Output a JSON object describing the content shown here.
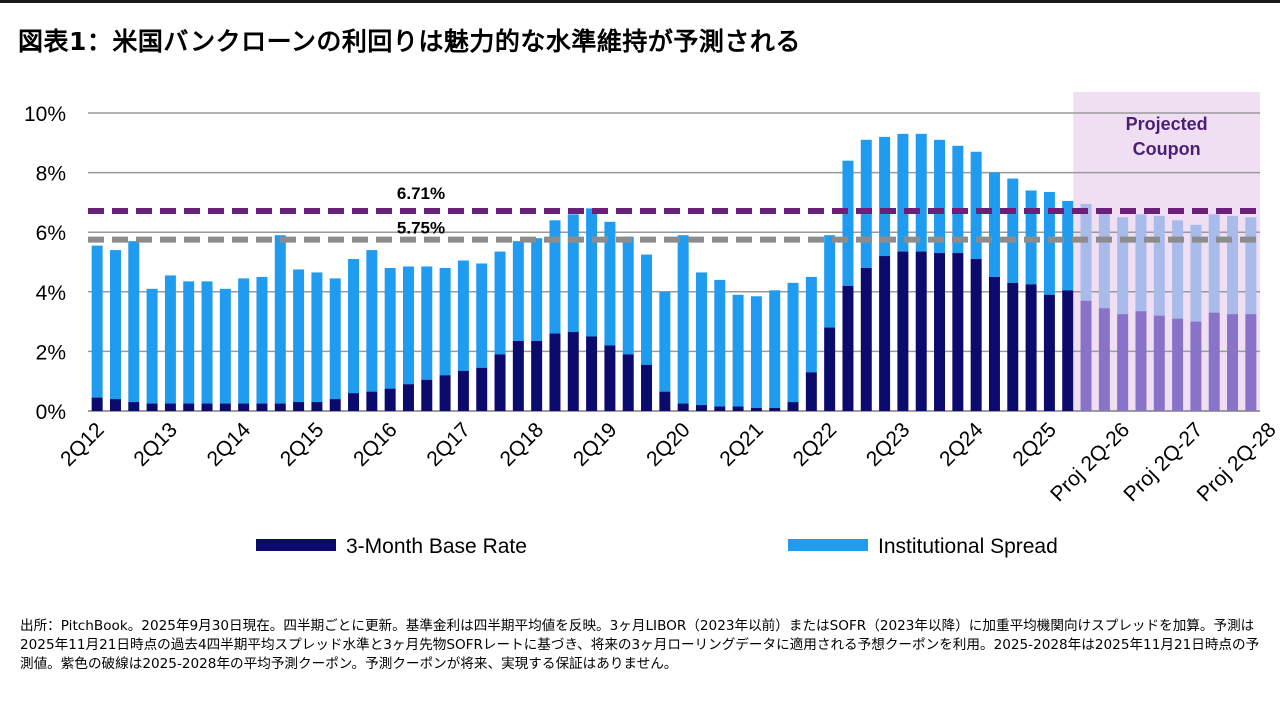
{
  "title": "図表1：米国バンクローンの利回りは魅力的な水準維持が予測される",
  "footnote": "出所：PitchBook。2025年9月30日現在。四半期ごとに更新。基準金利は四半期平均値を反映。3ヶ月LIBOR（2023年以前）またはSOFR（2023年以降）に加重平均機関向けスプレッドを加算。予測は2025年11月21日時点の過去4四半期平均スプレッド水準と3ヶ月先物SOFRレートに基づき、将来の3ヶ月ローリングデータに適用される予想クーポンを利用。2025-2028年は2025年11月21日時点の予測値。紫色の破線は2025-2028年の平均予測クーポン。予測クーポンが将来、実現する保証はありません。",
  "chart_data": {
    "type": "bar",
    "stacked": true,
    "ylim": [
      0,
      10
    ],
    "yticks": [
      "0%",
      "2%",
      "4%",
      "6%",
      "8%",
      "10%"
    ],
    "xtick_labels": [
      "2Q12",
      "2Q13",
      "2Q14",
      "2Q15",
      "2Q16",
      "2Q17",
      "2Q18",
      "2Q19",
      "2Q20",
      "2Q21",
      "2Q22",
      "2Q23",
      "2Q24",
      "2Q25",
      "Proj 2Q-26",
      "Proj 2Q-27",
      "Proj 2Q-28"
    ],
    "series": [
      {
        "name": "3-Month Base Rate",
        "color": "#0b0b6e",
        "projected_color": "#8873c8",
        "values": [
          0.45,
          0.4,
          0.3,
          0.25,
          0.25,
          0.25,
          0.25,
          0.25,
          0.25,
          0.25,
          0.25,
          0.3,
          0.3,
          0.4,
          0.6,
          0.65,
          0.75,
          0.9,
          1.05,
          1.2,
          1.35,
          1.45,
          1.9,
          2.35,
          2.35,
          2.6,
          2.65,
          2.5,
          2.2,
          1.9,
          1.55,
          0.65,
          0.25,
          0.2,
          0.15,
          0.15,
          0.1,
          0.1,
          0.3,
          1.3,
          2.8,
          4.2,
          4.8,
          5.2,
          5.35,
          5.35,
          5.3,
          5.3,
          5.1,
          4.5,
          4.3,
          4.25,
          3.9,
          4.05,
          3.7,
          3.45,
          3.25,
          3.35,
          3.2,
          3.1,
          3.0,
          3.3,
          3.25,
          3.25
        ]
      },
      {
        "name": "Institutional Spread",
        "color": "#1f9cf0",
        "projected_color": "#a9bbeb",
        "values": [
          5.1,
          5.0,
          5.4,
          3.85,
          4.3,
          4.1,
          4.1,
          3.85,
          4.2,
          4.25,
          5.65,
          4.45,
          4.35,
          4.05,
          4.5,
          4.75,
          4.05,
          3.95,
          3.8,
          3.6,
          3.7,
          3.5,
          3.45,
          3.35,
          3.45,
          3.8,
          3.95,
          4.3,
          4.15,
          3.95,
          3.7,
          3.35,
          5.65,
          4.45,
          4.25,
          3.75,
          3.75,
          3.95,
          4.0,
          3.2,
          3.1,
          4.2,
          4.3,
          4.0,
          3.95,
          3.95,
          3.8,
          3.6,
          3.6,
          3.5,
          3.5,
          3.15,
          3.45,
          3.0,
          3.25,
          3.25,
          3.25,
          3.25,
          3.35,
          3.3,
          3.25,
          3.3,
          3.3,
          3.25
        ]
      }
    ],
    "projected_start_index": 54,
    "projected_band_label": [
      "Projected",
      "Coupon"
    ],
    "reference_lines": [
      {
        "value": 6.71,
        "label": "6.71%",
        "color": "#6a2079"
      },
      {
        "value": 5.75,
        "label": "5.75%",
        "color": "#8c8c8c"
      }
    ],
    "legend_position": "bottom",
    "band_color": "#f0dff3",
    "band_text_color": "#4b1f77"
  }
}
